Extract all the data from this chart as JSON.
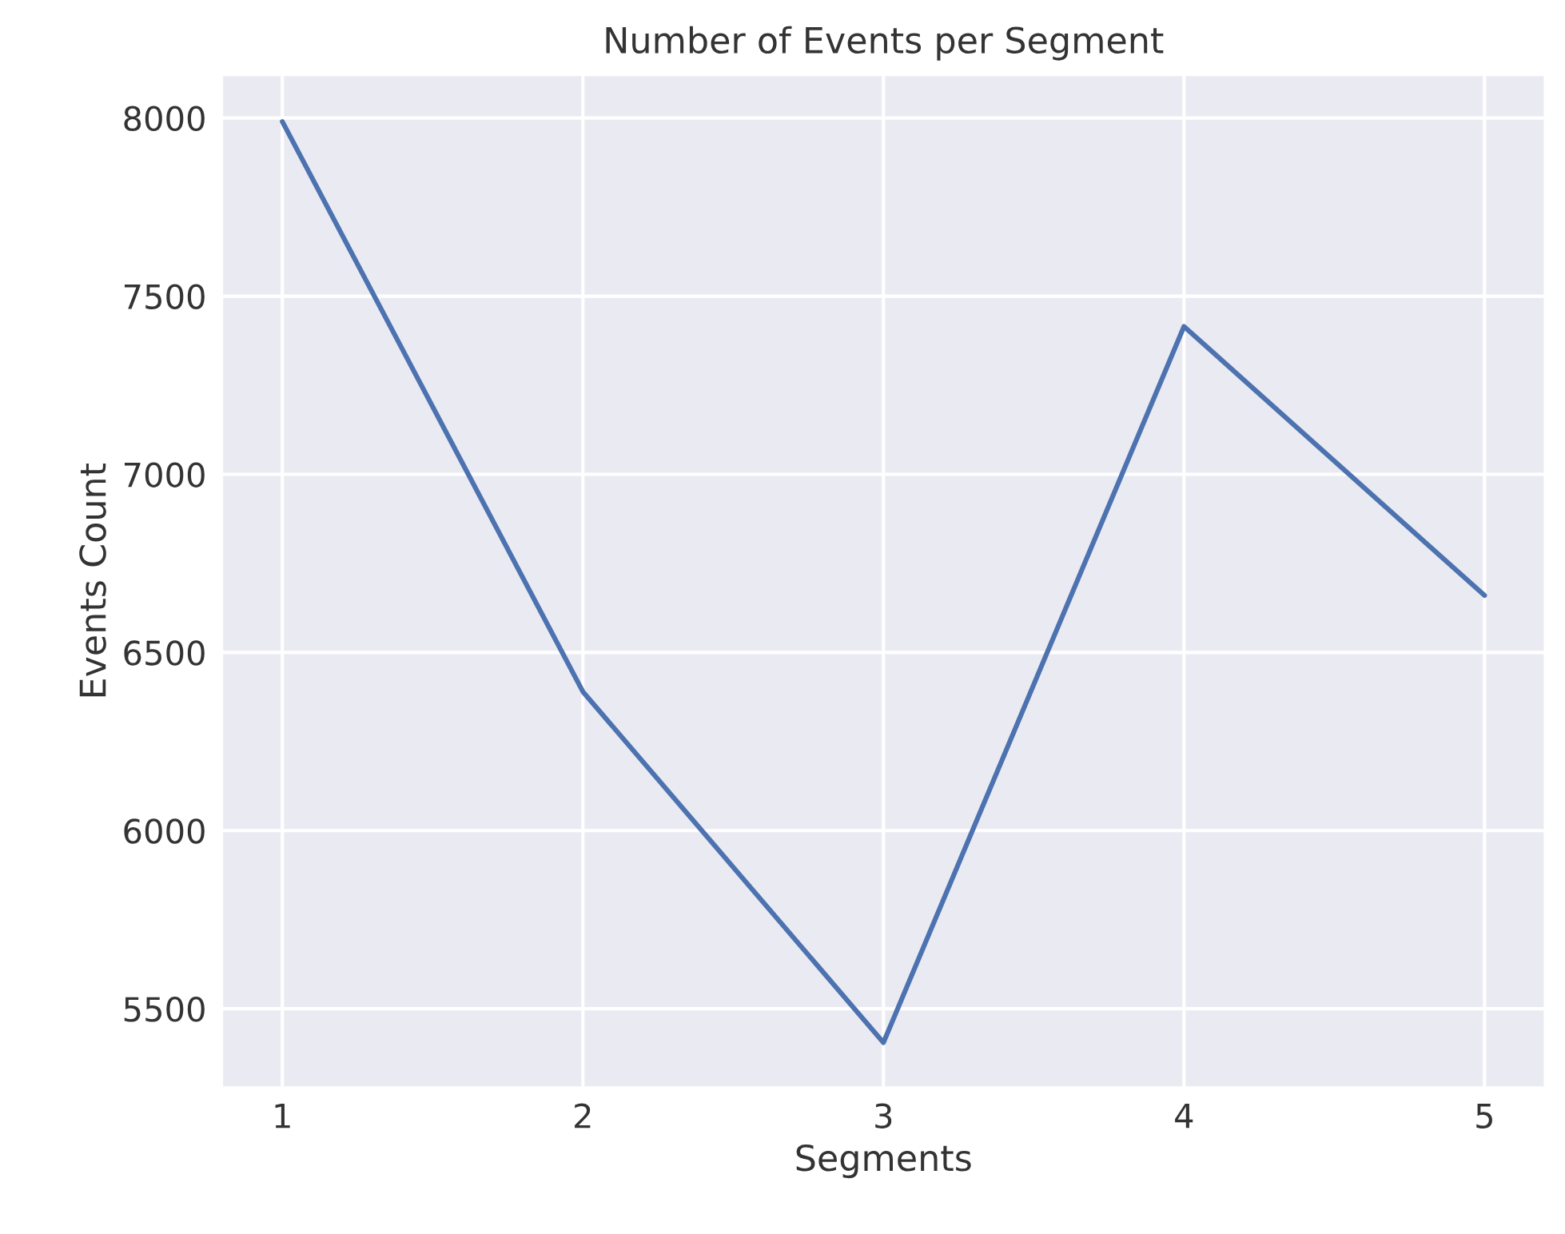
{
  "chart_data": {
    "type": "line",
    "title": "Number of Events per Segment",
    "xlabel": "Segments",
    "ylabel": "Events Count",
    "x": [
      1,
      2,
      3,
      4,
      5
    ],
    "series": [
      {
        "color": "#4c72b0",
        "values": [
          7990,
          6390,
          5405,
          7415,
          6660
        ]
      }
    ],
    "xlim": [
      0.8,
      5.2
    ],
    "xticks": [
      1,
      2,
      3,
      4,
      5
    ],
    "ylim": [
      5280,
      8120
    ],
    "yticks": [
      5500,
      6000,
      6500,
      7000,
      7500,
      8000
    ],
    "grid": true,
    "line_style": "solid",
    "marker": "none"
  }
}
